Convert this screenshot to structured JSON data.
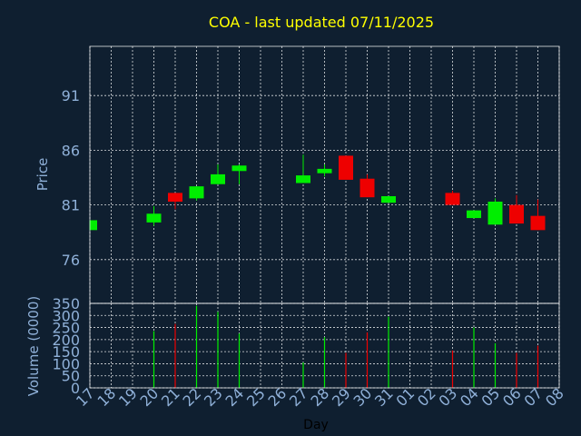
{
  "chart_data": {
    "type": "candlestick",
    "title": "COA - last updated 07/11/2025",
    "xlabel": "Day",
    "x_tick_labels": [
      "17",
      "18",
      "19",
      "20",
      "21",
      "22",
      "23",
      "24",
      "25",
      "26",
      "27",
      "28",
      "29",
      "30",
      "31",
      "01",
      "02",
      "03",
      "04",
      "05",
      "06",
      "07",
      "08"
    ],
    "price_panel": {
      "ylabel": "Price",
      "ylim": [
        72,
        95.5
      ],
      "yticks": [
        76,
        81,
        86,
        91
      ],
      "candles": [
        {
          "day": "17",
          "open": 78.7,
          "close": 79.6,
          "high": 79.6,
          "low": 78.7
        },
        {
          "day": "20",
          "open": 79.4,
          "close": 80.2,
          "high": 80.9,
          "low": 79.1
        },
        {
          "day": "21",
          "open": 82.1,
          "close": 81.3,
          "high": 82.1,
          "low": 80.6
        },
        {
          "day": "22",
          "open": 81.6,
          "close": 82.7,
          "high": 82.7,
          "low": 81.4
        },
        {
          "day": "23",
          "open": 82.9,
          "close": 83.8,
          "high": 84.7,
          "low": 82.9
        },
        {
          "day": "24",
          "open": 84.1,
          "close": 84.6,
          "high": 84.7,
          "low": 82.9
        },
        {
          "day": "27",
          "open": 83.0,
          "close": 83.7,
          "high": 85.6,
          "low": 83.0
        },
        {
          "day": "28",
          "open": 83.9,
          "close": 84.3,
          "high": 84.7,
          "low": 83.6
        },
        {
          "day": "29",
          "open": 85.5,
          "close": 83.3,
          "high": 85.5,
          "low": 83.3
        },
        {
          "day": "30",
          "open": 83.4,
          "close": 81.7,
          "high": 83.8,
          "low": 81.7
        },
        {
          "day": "31",
          "open": 81.2,
          "close": 81.8,
          "high": 81.8,
          "low": 81.2
        },
        {
          "day": "03",
          "open": 82.1,
          "close": 81.0,
          "high": 82.3,
          "low": 81.0
        },
        {
          "day": "04",
          "open": 79.8,
          "close": 80.5,
          "high": 80.5,
          "low": 79.8
        },
        {
          "day": "05",
          "open": 79.2,
          "close": 81.3,
          "high": 81.6,
          "low": 79.2
        },
        {
          "day": "06",
          "open": 81.0,
          "close": 79.3,
          "high": 81.9,
          "low": 79.3
        },
        {
          "day": "07",
          "open": 80.0,
          "close": 78.7,
          "high": 81.5,
          "low": 78.7
        }
      ]
    },
    "volume_panel": {
      "ylabel": "Volume (0000)",
      "ylim": [
        0,
        350
      ],
      "yticks": [
        0,
        50,
        100,
        150,
        200,
        250,
        300,
        350
      ],
      "bars": [
        {
          "day": "20",
          "value": 235,
          "direction": "up"
        },
        {
          "day": "21",
          "value": 265,
          "direction": "down"
        },
        {
          "day": "22",
          "value": 340,
          "direction": "up"
        },
        {
          "day": "23",
          "value": 315,
          "direction": "up"
        },
        {
          "day": "24",
          "value": 225,
          "direction": "up"
        },
        {
          "day": "27",
          "value": 105,
          "direction": "up"
        },
        {
          "day": "28",
          "value": 210,
          "direction": "up"
        },
        {
          "day": "29",
          "value": 145,
          "direction": "down"
        },
        {
          "day": "30",
          "value": 230,
          "direction": "down"
        },
        {
          "day": "31",
          "value": 295,
          "direction": "up"
        },
        {
          "day": "03",
          "value": 155,
          "direction": "down"
        },
        {
          "day": "04",
          "value": 250,
          "direction": "up"
        },
        {
          "day": "05",
          "value": 185,
          "direction": "up"
        },
        {
          "day": "06",
          "value": 145,
          "direction": "down"
        },
        {
          "day": "07",
          "value": 175,
          "direction": "down"
        }
      ]
    },
    "grid": true,
    "colors": {
      "background": "#0f1f30",
      "up": "#00ee00",
      "down": "#ee0000",
      "title": "#ffff00",
      "ticks": "#8fb0d8",
      "grid": "#ffffff"
    }
  }
}
